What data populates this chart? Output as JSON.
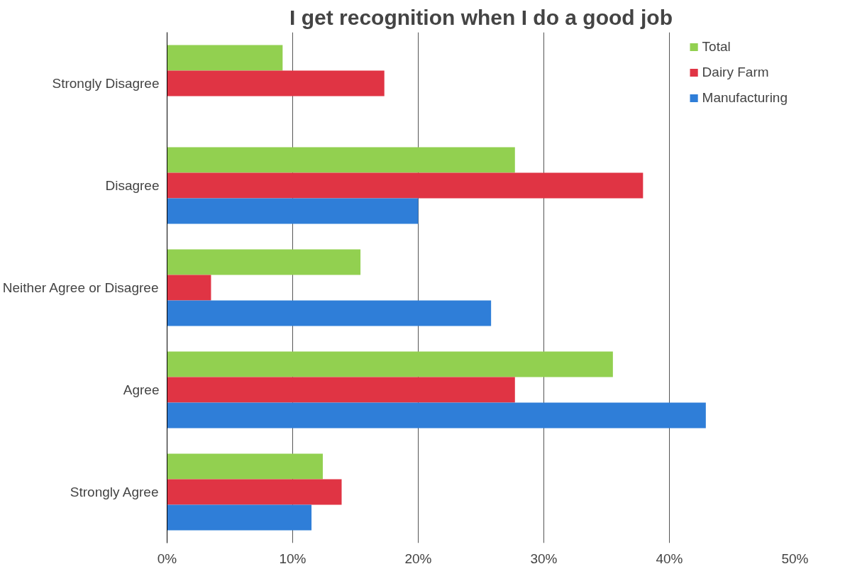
{
  "chart_data": {
    "type": "bar",
    "orientation": "horizontal",
    "title": "I get recognition when I do a good job",
    "categories": [
      "Strongly Disagree",
      "Disagree",
      "Neither Agree or Disagree",
      "Agree",
      "Strongly Agree"
    ],
    "series": [
      {
        "name": "Total",
        "color": "#92d050",
        "values": [
          9.2,
          27.7,
          15.4,
          35.5,
          12.4
        ]
      },
      {
        "name": "Dairy Farm",
        "color": "#e03444",
        "values": [
          17.3,
          37.9,
          3.5,
          27.7,
          13.9
        ]
      },
      {
        "name": "Manufacturing",
        "color": "#2f7ed8",
        "values": [
          0,
          20.0,
          25.8,
          42.9,
          11.5
        ]
      }
    ],
    "xlim": [
      0,
      50
    ],
    "xticks": [
      {
        "value": 0,
        "label": "0%"
      },
      {
        "value": 10,
        "label": "10%"
      },
      {
        "value": 20,
        "label": "20%"
      },
      {
        "value": 30,
        "label": "30%"
      },
      {
        "value": 40,
        "label": "40%"
      },
      {
        "value": 50,
        "label": "50%"
      }
    ],
    "grid": "x",
    "legend": "top right"
  }
}
